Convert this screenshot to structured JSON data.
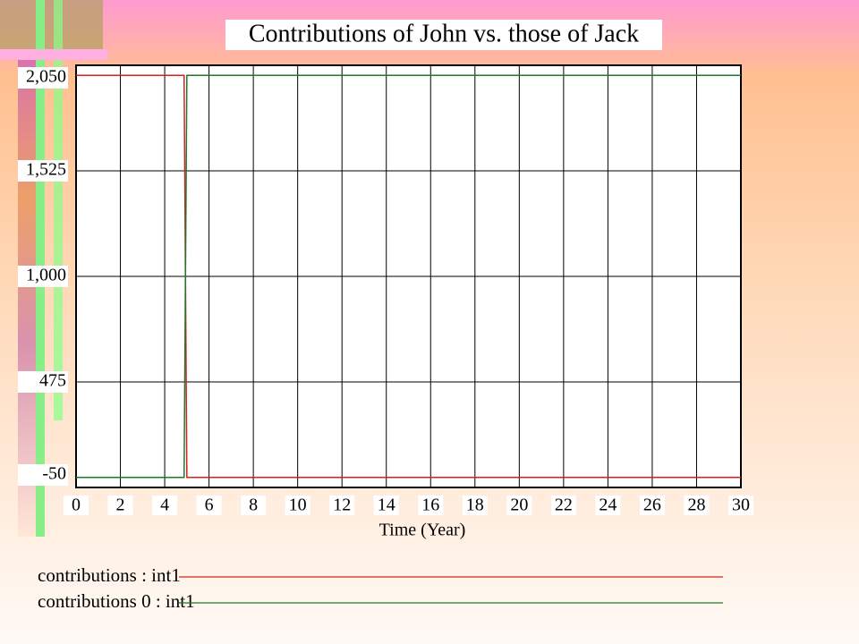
{
  "chart_data": {
    "type": "line",
    "title": "Contributions of John vs. those of Jack",
    "x_label": "Time (Year)",
    "x": [
      0,
      4.875,
      5,
      30
    ],
    "series": [
      {
        "name": "contributions : int1",
        "color": "#d62020",
        "values": [
          2000,
          2000,
          0,
          0
        ]
      },
      {
        "name": "contributions 0 : int1",
        "color": "#1a7a2a",
        "values": [
          0,
          0,
          2000,
          2000
        ]
      }
    ],
    "xlim": [
      0,
      30
    ],
    "xticks": [
      0,
      2,
      4,
      6,
      8,
      10,
      12,
      14,
      16,
      18,
      20,
      22,
      24,
      26,
      28,
      30
    ],
    "ylim": [
      -50,
      2050
    ],
    "yticks": [
      {
        "value": -50,
        "label": "-50"
      },
      {
        "value": 475,
        "label": "475"
      },
      {
        "value": 1000,
        "label": "1,000"
      },
      {
        "value": 1525,
        "label": "1,525"
      },
      {
        "value": 2050,
        "label": "2,050"
      }
    ],
    "grid": true
  }
}
